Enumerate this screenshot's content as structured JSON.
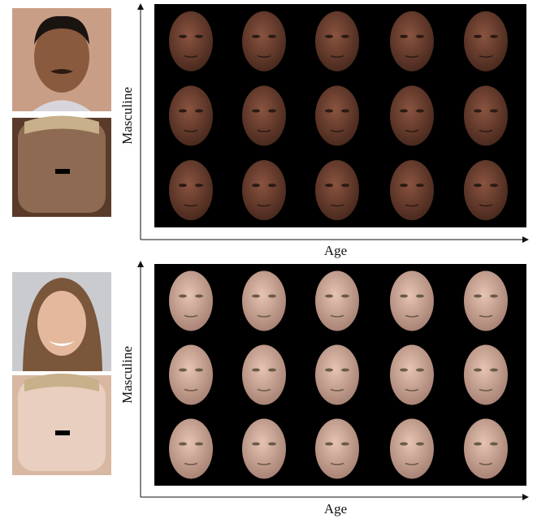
{
  "panels": [
    {
      "y_label": "Masculine",
      "x_label": "Age"
    },
    {
      "y_label": "Masculine",
      "x_label": "Age"
    }
  ]
}
